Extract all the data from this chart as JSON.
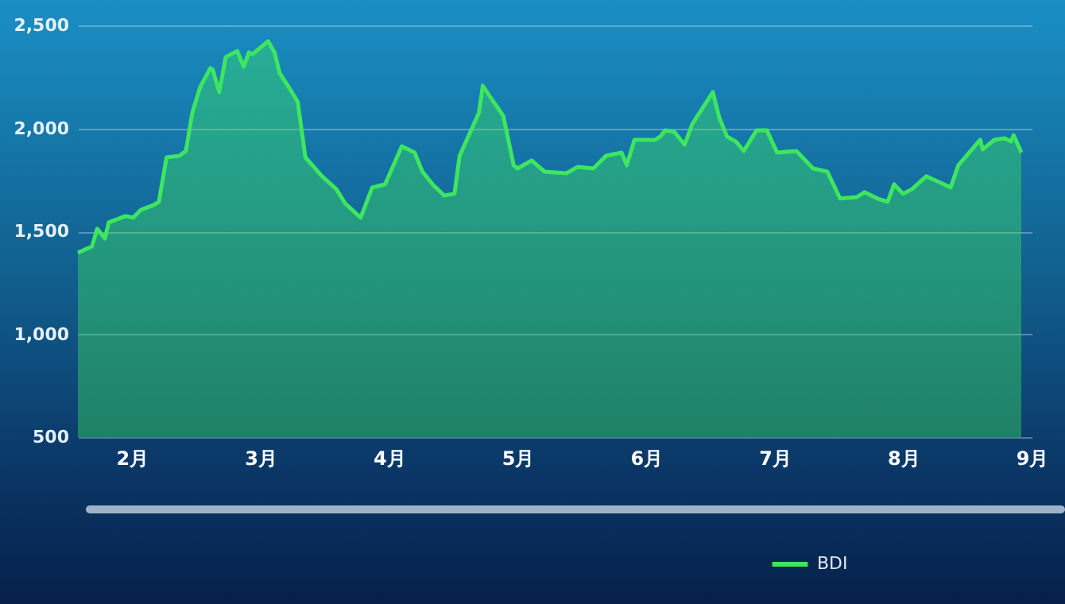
{
  "chart_data": {
    "type": "area",
    "xlim": [
      1.58,
      9.0
    ],
    "xticks": [
      {
        "value": 2,
        "label": "2月"
      },
      {
        "value": 3,
        "label": "3月"
      },
      {
        "value": 4,
        "label": "4月"
      },
      {
        "value": 5,
        "label": "5月"
      },
      {
        "value": 6,
        "label": "6月"
      },
      {
        "value": 7,
        "label": "7月"
      },
      {
        "value": 8,
        "label": "8月"
      },
      {
        "value": 9,
        "label": "9月"
      }
    ],
    "ylim": [
      500,
      2500
    ],
    "yticks": [
      {
        "value": 500,
        "label": "500"
      },
      {
        "value": 1000,
        "label": "1,000"
      },
      {
        "value": 1500,
        "label": "1,500"
      },
      {
        "value": 2000,
        "label": "2,000"
      },
      {
        "value": 2500,
        "label": "2,500"
      }
    ],
    "grid": "y",
    "legend": "bottom",
    "x": [
      1.58,
      1.69,
      1.73,
      1.79,
      1.82,
      1.95,
      2.01,
      2.07,
      2.17,
      2.21,
      2.27,
      2.37,
      2.42,
      2.47,
      2.53,
      2.61,
      2.63,
      2.68,
      2.73,
      2.82,
      2.87,
      2.91,
      2.94,
      3.06,
      3.11,
      3.15,
      3.23,
      3.29,
      3.35,
      3.48,
      3.59,
      3.66,
      3.78,
      3.87,
      3.97,
      4.1,
      4.2,
      4.26,
      4.34,
      4.43,
      4.51,
      4.55,
      4.7,
      4.73,
      4.78,
      4.89,
      4.97,
      5.0,
      5.11,
      5.21,
      5.38,
      5.47,
      5.59,
      5.69,
      5.81,
      5.85,
      5.91,
      6.07,
      6.11,
      6.15,
      6.22,
      6.3,
      6.36,
      6.52,
      6.57,
      6.63,
      6.7,
      6.76,
      6.86,
      6.94,
      7.02,
      7.17,
      7.3,
      7.41,
      7.51,
      7.64,
      7.7,
      7.8,
      7.88,
      7.93,
      8.0,
      8.07,
      8.18,
      8.37,
      8.43,
      8.6,
      8.62,
      8.71,
      8.79,
      8.84,
      8.86,
      8.92
    ],
    "series": [
      {
        "name": "BDI",
        "color": "#3ee65f",
        "values": [
          1396,
          1427,
          1512,
          1465,
          1543,
          1574,
          1566,
          1604,
          1628,
          1643,
          1859,
          1867,
          1890,
          2075,
          2199,
          2292,
          2284,
          2176,
          2346,
          2376,
          2299,
          2369,
          2361,
          2423,
          2369,
          2268,
          2191,
          2129,
          1859,
          1767,
          1705,
          1635,
          1566,
          1713,
          1728,
          1913,
          1882,
          1790,
          1728,
          1674,
          1682,
          1867,
          2075,
          2207,
          2160,
          2060,
          1821,
          1805,
          1844,
          1790,
          1782,
          1813,
          1805,
          1867,
          1882,
          1821,
          1944,
          1944,
          1960,
          1990,
          1983,
          1921,
          2021,
          2176,
          2052,
          1960,
          1936,
          1890,
          1990,
          1990,
          1882,
          1890,
          1805,
          1790,
          1659,
          1666,
          1690,
          1659,
          1643,
          1728,
          1682,
          1705,
          1767,
          1713,
          1821,
          1944,
          1898,
          1944,
          1952,
          1936,
          1967,
          1882
        ]
      }
    ]
  }
}
